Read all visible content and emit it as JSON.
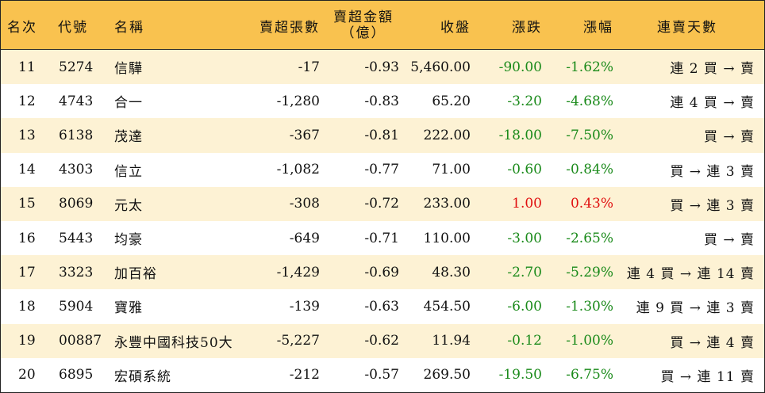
{
  "headers": {
    "rank": "名次",
    "code": "代號",
    "name": "名稱",
    "sell_lots": "賣超張數",
    "sell_amount_line1": "賣超金額",
    "sell_amount_line2": "（億）",
    "close": "收盤",
    "change": "漲跌",
    "pct": "漲幅",
    "streak": "連賣天數"
  },
  "colors": {
    "header_bg": "#f9c24f",
    "stripe_bg": "#fdf2d4",
    "down": "#1a8a1a",
    "up": "#e01010"
  },
  "rows": [
    {
      "rank": "11",
      "code": "5274",
      "name": "信驊",
      "lots": "-17",
      "amount": "-0.93",
      "close": "5,460.00",
      "change": "-90.00",
      "pct": "-1.62%",
      "dir": "down",
      "streak": "連 2 買 → 賣"
    },
    {
      "rank": "12",
      "code": "4743",
      "name": "合一",
      "lots": "-1,280",
      "amount": "-0.83",
      "close": "65.20",
      "change": "-3.20",
      "pct": "-4.68%",
      "dir": "down",
      "streak": "連 4 買 → 賣"
    },
    {
      "rank": "13",
      "code": "6138",
      "name": "茂達",
      "lots": "-367",
      "amount": "-0.81",
      "close": "222.00",
      "change": "-18.00",
      "pct": "-7.50%",
      "dir": "down",
      "streak": "買 → 賣"
    },
    {
      "rank": "14",
      "code": "4303",
      "name": "信立",
      "lots": "-1,082",
      "amount": "-0.77",
      "close": "71.00",
      "change": "-0.60",
      "pct": "-0.84%",
      "dir": "down",
      "streak": "買 → 連 3 賣"
    },
    {
      "rank": "15",
      "code": "8069",
      "name": "元太",
      "lots": "-308",
      "amount": "-0.72",
      "close": "233.00",
      "change": "1.00",
      "pct": "0.43%",
      "dir": "up",
      "streak": "買 → 連 3 賣"
    },
    {
      "rank": "16",
      "code": "5443",
      "name": "均豪",
      "lots": "-649",
      "amount": "-0.71",
      "close": "110.00",
      "change": "-3.00",
      "pct": "-2.65%",
      "dir": "down",
      "streak": "買 → 賣"
    },
    {
      "rank": "17",
      "code": "3323",
      "name": "加百裕",
      "lots": "-1,429",
      "amount": "-0.69",
      "close": "48.30",
      "change": "-2.70",
      "pct": "-5.29%",
      "dir": "down",
      "streak": "連 4 買 → 連 14 賣"
    },
    {
      "rank": "18",
      "code": "5904",
      "name": "寶雅",
      "lots": "-139",
      "amount": "-0.63",
      "close": "454.50",
      "change": "-6.00",
      "pct": "-1.30%",
      "dir": "down",
      "streak": "連 9 買 → 連 3 賣"
    },
    {
      "rank": "19",
      "code": "00887",
      "name": "永豐中國科技50大",
      "lots": "-5,227",
      "amount": "-0.62",
      "close": "11.94",
      "change": "-0.12",
      "pct": "-1.00%",
      "dir": "down",
      "streak": "買 → 連 4 賣"
    },
    {
      "rank": "20",
      "code": "6895",
      "name": "宏碩系統",
      "lots": "-212",
      "amount": "-0.57",
      "close": "269.50",
      "change": "-19.50",
      "pct": "-6.75%",
      "dir": "down",
      "streak": "買 → 連 11 賣"
    }
  ]
}
